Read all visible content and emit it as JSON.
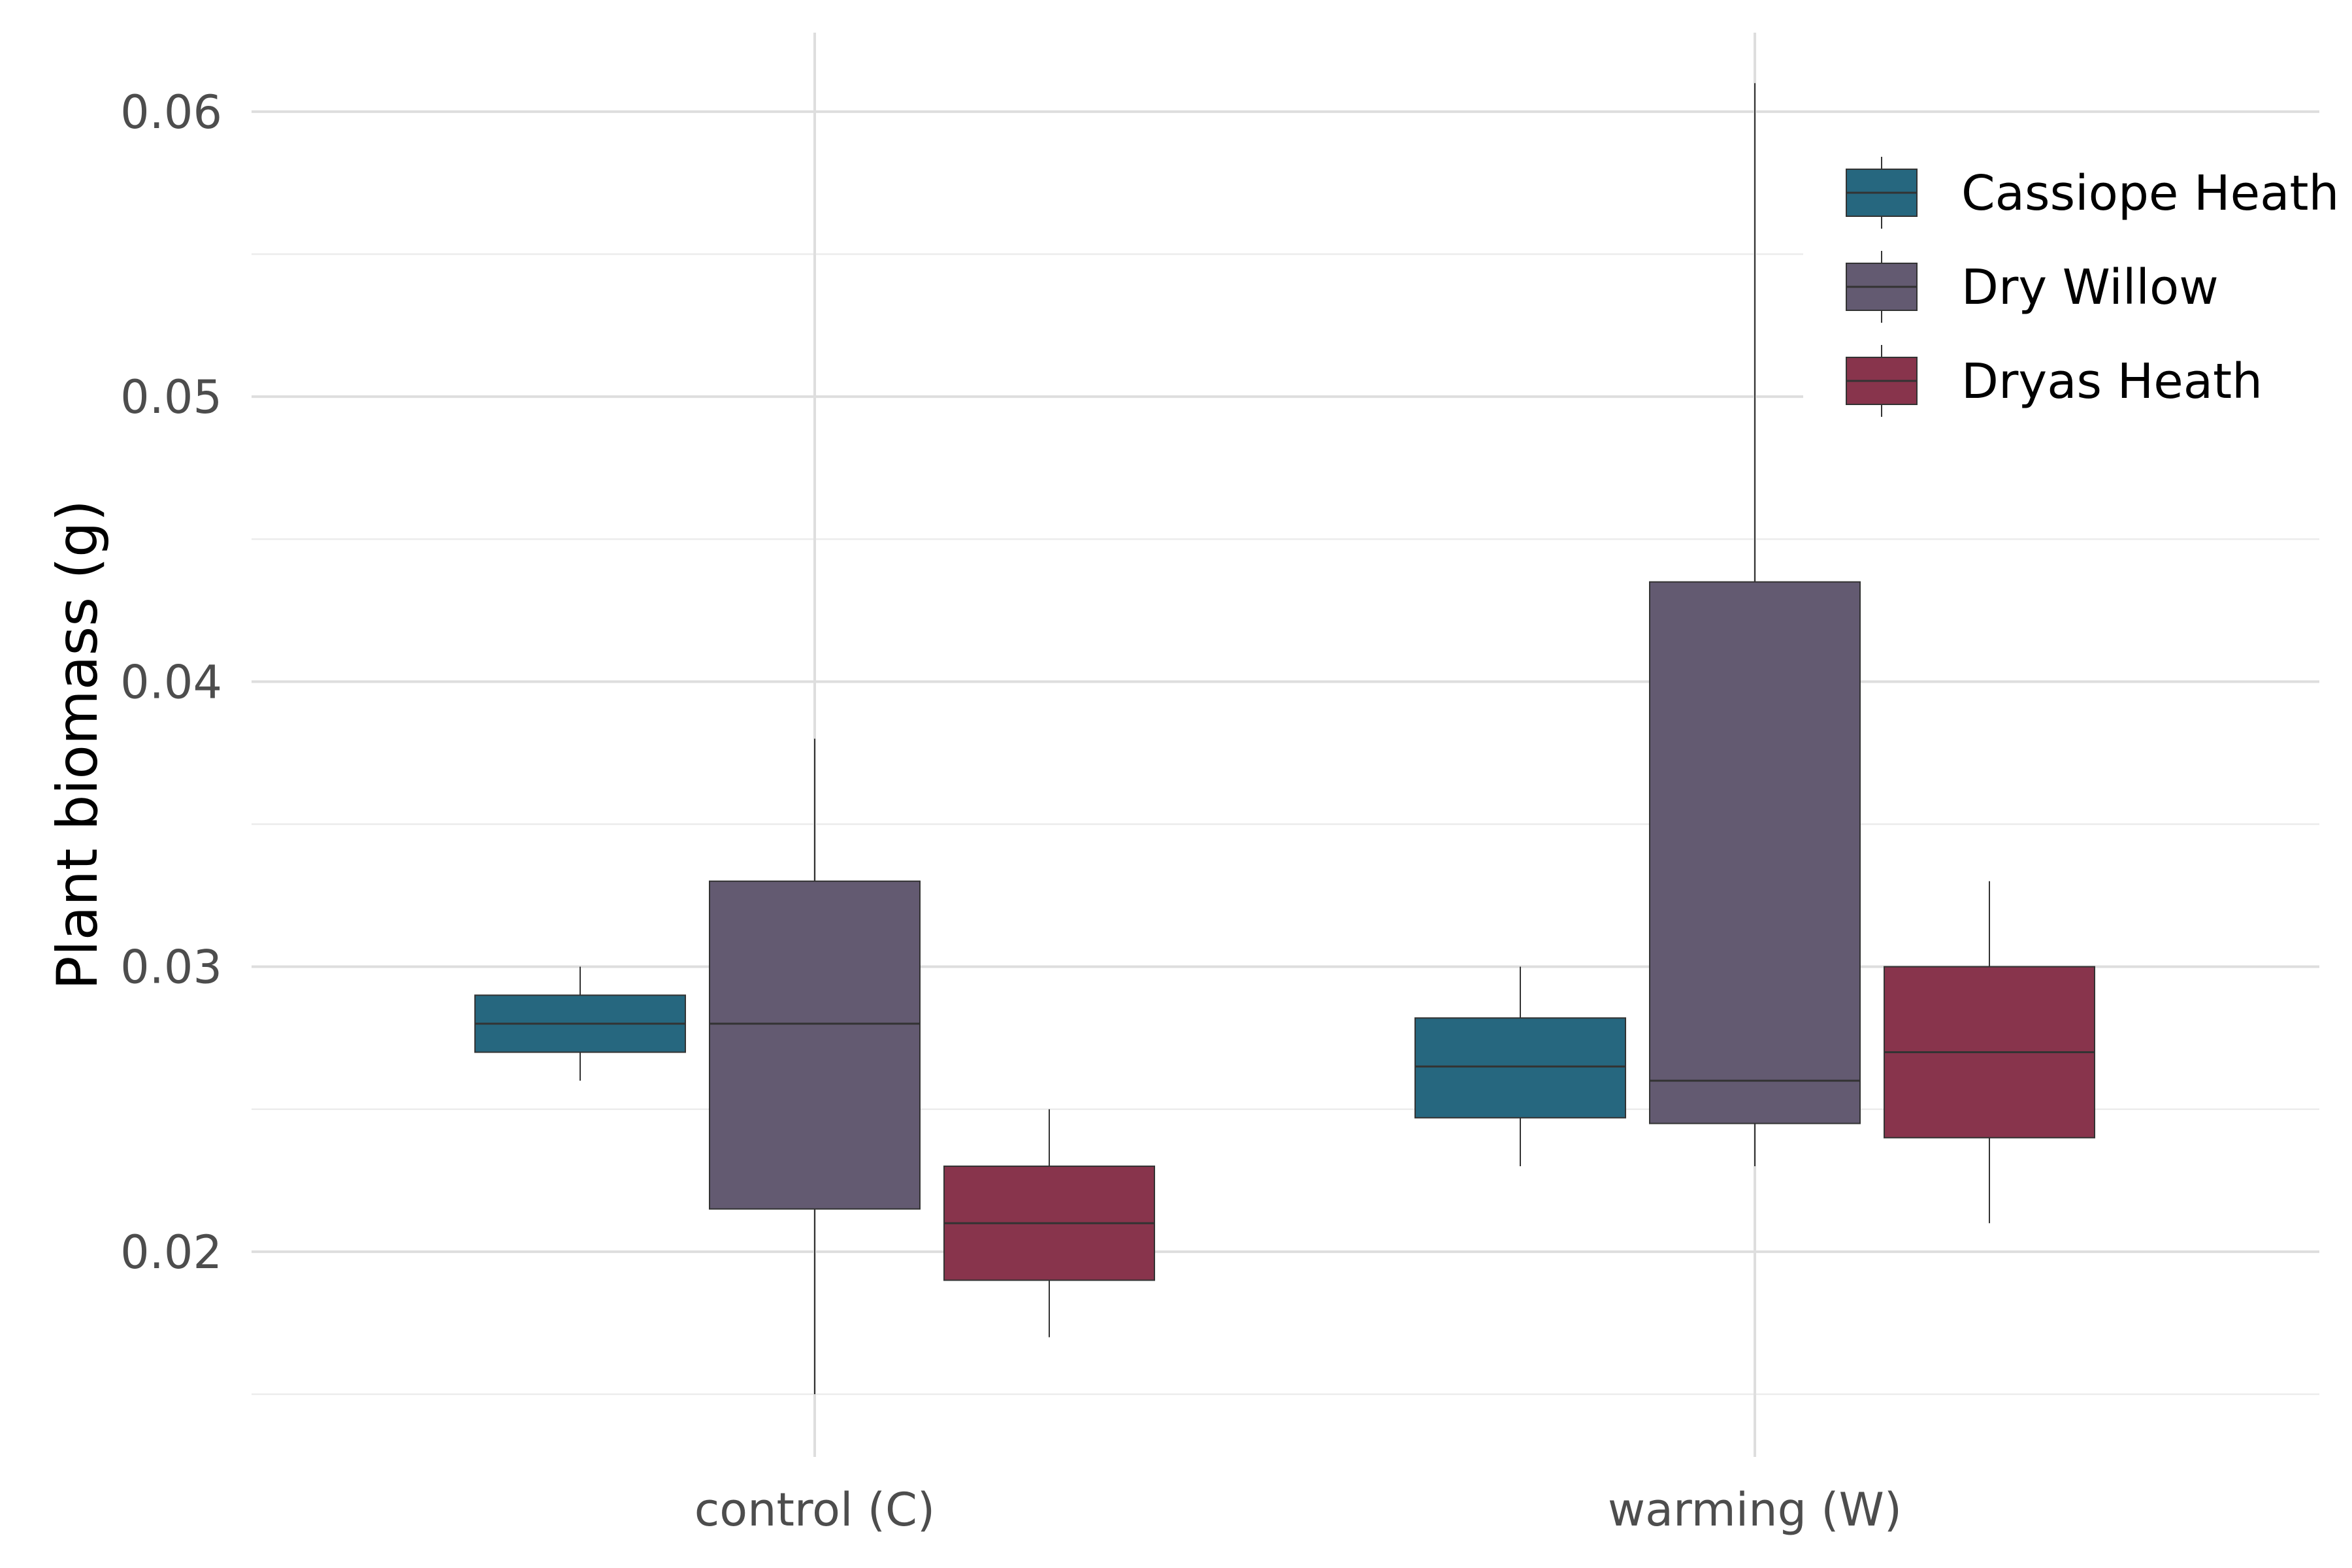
{
  "chart_data": {
    "type": "boxplot",
    "ylabel": "Plant biomass (g)",
    "xlabel": "",
    "ylim": [
      0.0128,
      0.063
    ],
    "y_ticks": [
      0.02,
      0.03,
      0.04,
      0.05,
      0.06
    ],
    "y_tick_labels": [
      "0.02",
      "0.03",
      "0.04",
      "0.05",
      "0.06"
    ],
    "categories": [
      "control (C)",
      "warming (W)"
    ],
    "legend_position": "top-right",
    "grid": true,
    "series": [
      {
        "name": "Cassiope Heath",
        "color": "#26677f",
        "boxes": [
          {
            "min": 0.026,
            "q1": 0.027,
            "median": 0.028,
            "q3": 0.029,
            "max": 0.03
          },
          {
            "min": 0.023,
            "q1": 0.0247,
            "median": 0.0265,
            "q3": 0.0282,
            "max": 0.03
          }
        ]
      },
      {
        "name": "Dry Willow",
        "color": "#635a71",
        "boxes": [
          {
            "min": 0.015,
            "q1": 0.0215,
            "median": 0.028,
            "q3": 0.033,
            "max": 0.038
          },
          {
            "min": 0.023,
            "q1": 0.0245,
            "median": 0.026,
            "q3": 0.0435,
            "max": 0.061
          }
        ]
      },
      {
        "name": "Dryas Heath",
        "color": "#88344c",
        "boxes": [
          {
            "min": 0.017,
            "q1": 0.019,
            "median": 0.021,
            "q3": 0.023,
            "max": 0.025
          },
          {
            "min": 0.021,
            "q1": 0.024,
            "median": 0.027,
            "q3": 0.03,
            "max": 0.033
          }
        ]
      }
    ]
  }
}
